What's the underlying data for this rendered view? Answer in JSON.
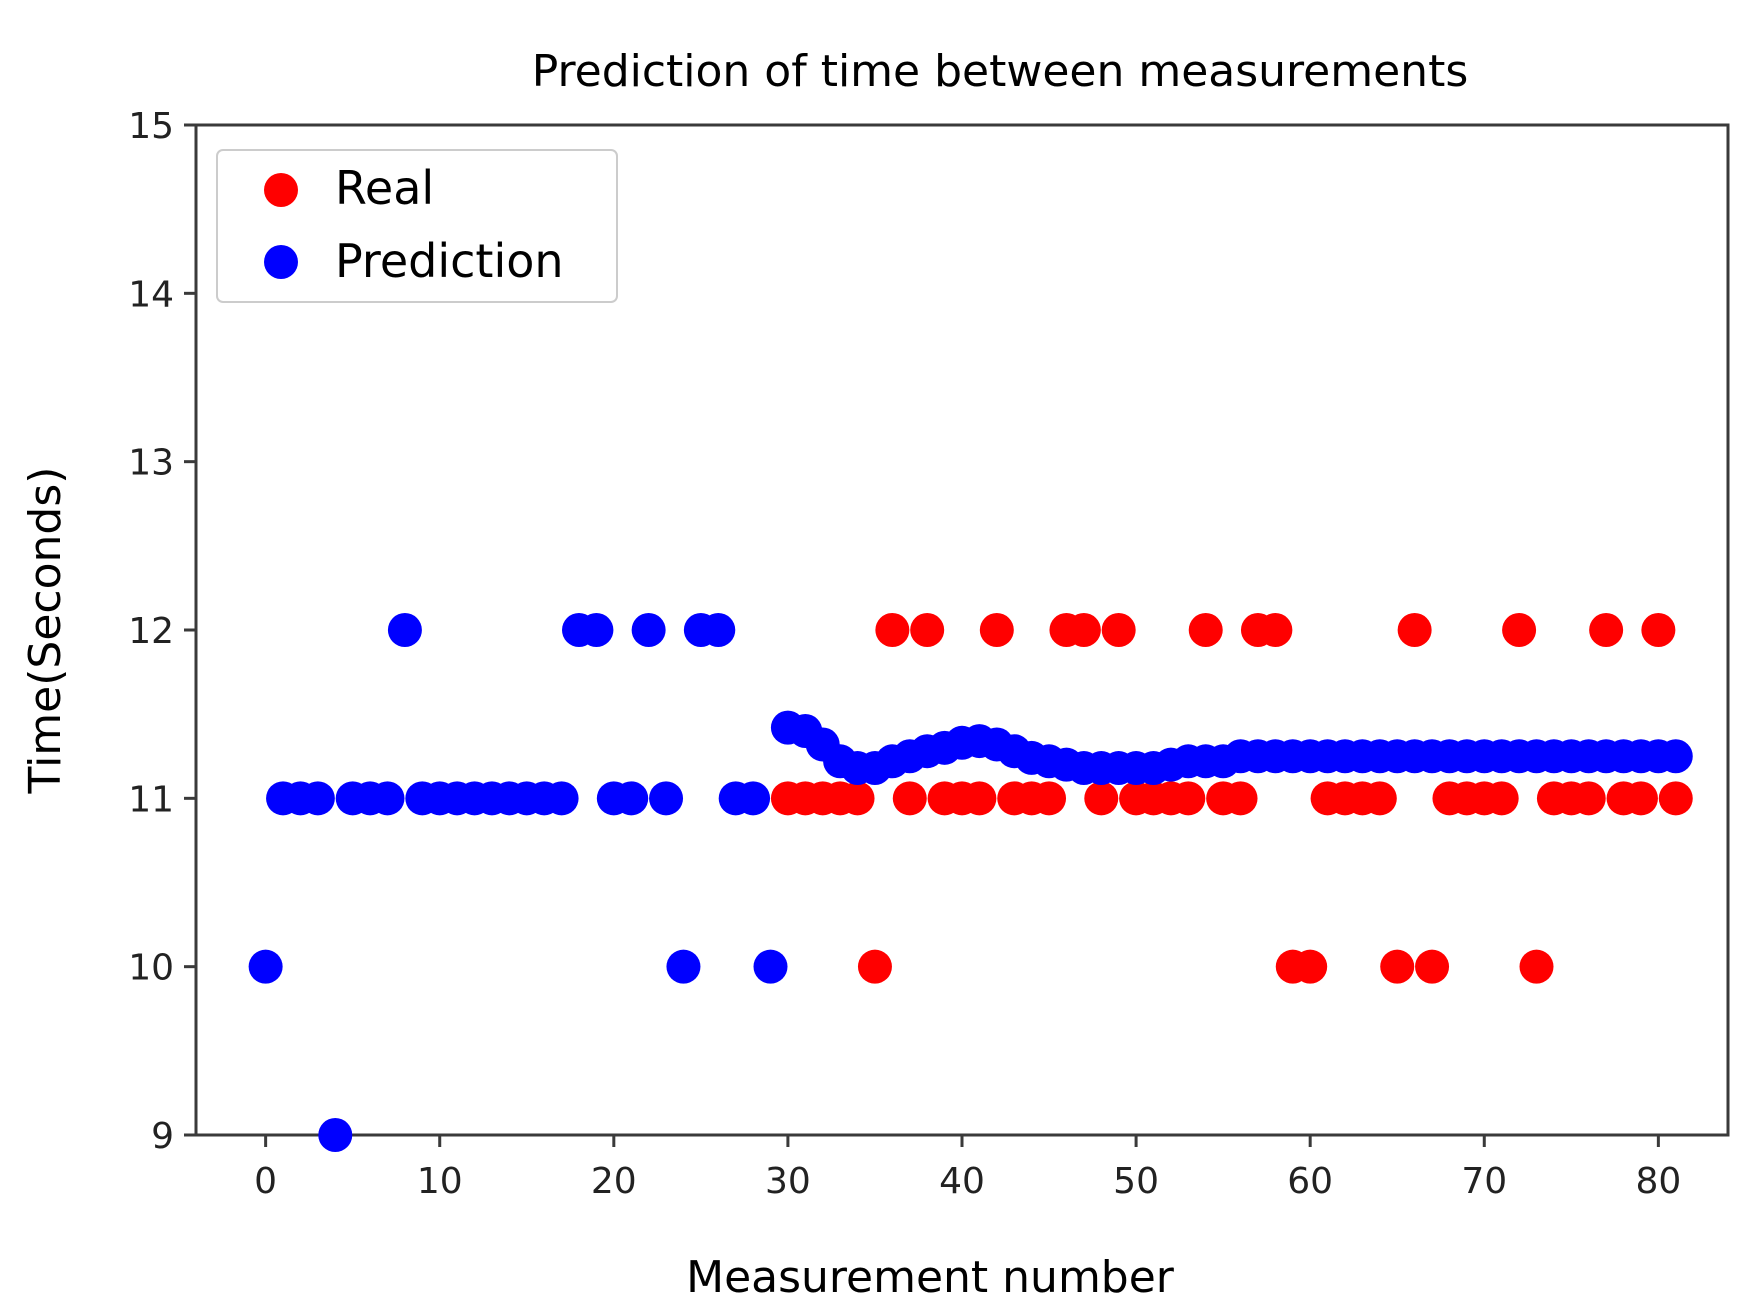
{
  "chart_data": {
    "type": "scatter",
    "title": "Prediction of time between measurements",
    "xlabel": "Measurement number",
    "ylabel": "Time(Seconds)",
    "xlim": [
      -4,
      84
    ],
    "ylim": [
      9,
      15
    ],
    "xticks": [
      0,
      10,
      20,
      30,
      40,
      50,
      60,
      70,
      80
    ],
    "yticks": [
      9,
      10,
      11,
      12,
      13,
      14,
      15
    ],
    "grid": false,
    "legend": "top-left",
    "series": [
      {
        "name": "Real",
        "color": "#ff0000",
        "x": [
          30,
          31,
          32,
          33,
          34,
          35,
          36,
          37,
          38,
          39,
          40,
          41,
          42,
          43,
          44,
          45,
          46,
          47,
          48,
          49,
          50,
          51,
          52,
          53,
          54,
          55,
          56,
          57,
          58,
          59,
          60,
          61,
          62,
          63,
          64,
          65,
          66,
          67,
          68,
          69,
          70,
          71,
          72,
          73,
          74,
          75,
          76,
          77,
          78,
          79,
          80,
          81
        ],
        "y": [
          11,
          11,
          11,
          11,
          11,
          10,
          12,
          11,
          12,
          11,
          11,
          11,
          12,
          11,
          11,
          11,
          12,
          12,
          11,
          12,
          11,
          11,
          11,
          11,
          12,
          11,
          11,
          12,
          12,
          10,
          10,
          11,
          11,
          11,
          11,
          10,
          12,
          10,
          11,
          11,
          11,
          11,
          12,
          10,
          11,
          11,
          11,
          12,
          11,
          11,
          12,
          11
        ]
      },
      {
        "name": "Prediction",
        "color": "#0000ff",
        "x": [
          0,
          1,
          2,
          3,
          4,
          5,
          6,
          7,
          8,
          9,
          10,
          11,
          12,
          13,
          14,
          15,
          16,
          17,
          18,
          19,
          20,
          21,
          22,
          23,
          24,
          25,
          26,
          27,
          28,
          29,
          30,
          31,
          32,
          33,
          34,
          35,
          36,
          37,
          38,
          39,
          40,
          41,
          42,
          43,
          44,
          45,
          46,
          47,
          48,
          49,
          50,
          51,
          52,
          53,
          54,
          55,
          56,
          57,
          58,
          59,
          60,
          61,
          62,
          63,
          64,
          65,
          66,
          67,
          68,
          69,
          70,
          71,
          72,
          73,
          74,
          75,
          76,
          77,
          78,
          79,
          80,
          81
        ],
        "y": [
          10,
          11,
          11,
          11,
          9,
          11,
          11,
          11,
          12,
          11,
          11,
          11,
          11,
          11,
          11,
          11,
          11,
          11,
          12,
          12,
          11,
          11,
          12,
          11,
          10,
          12,
          12,
          11,
          11,
          10,
          11.42,
          11.4,
          11.32,
          11.22,
          11.18,
          11.18,
          11.22,
          11.25,
          11.28,
          11.3,
          11.33,
          11.34,
          11.32,
          11.28,
          11.24,
          11.22,
          11.2,
          11.18,
          11.18,
          11.18,
          11.18,
          11.18,
          11.2,
          11.22,
          11.22,
          11.22,
          11.25,
          11.25,
          11.25,
          11.25,
          11.25,
          11.25,
          11.25,
          11.25,
          11.25,
          11.25,
          11.25,
          11.25,
          11.25,
          11.25,
          11.25,
          11.25,
          11.25,
          11.25,
          11.25,
          11.25,
          11.25,
          11.25,
          11.25,
          11.25,
          11.25,
          11.25
        ]
      }
    ]
  }
}
